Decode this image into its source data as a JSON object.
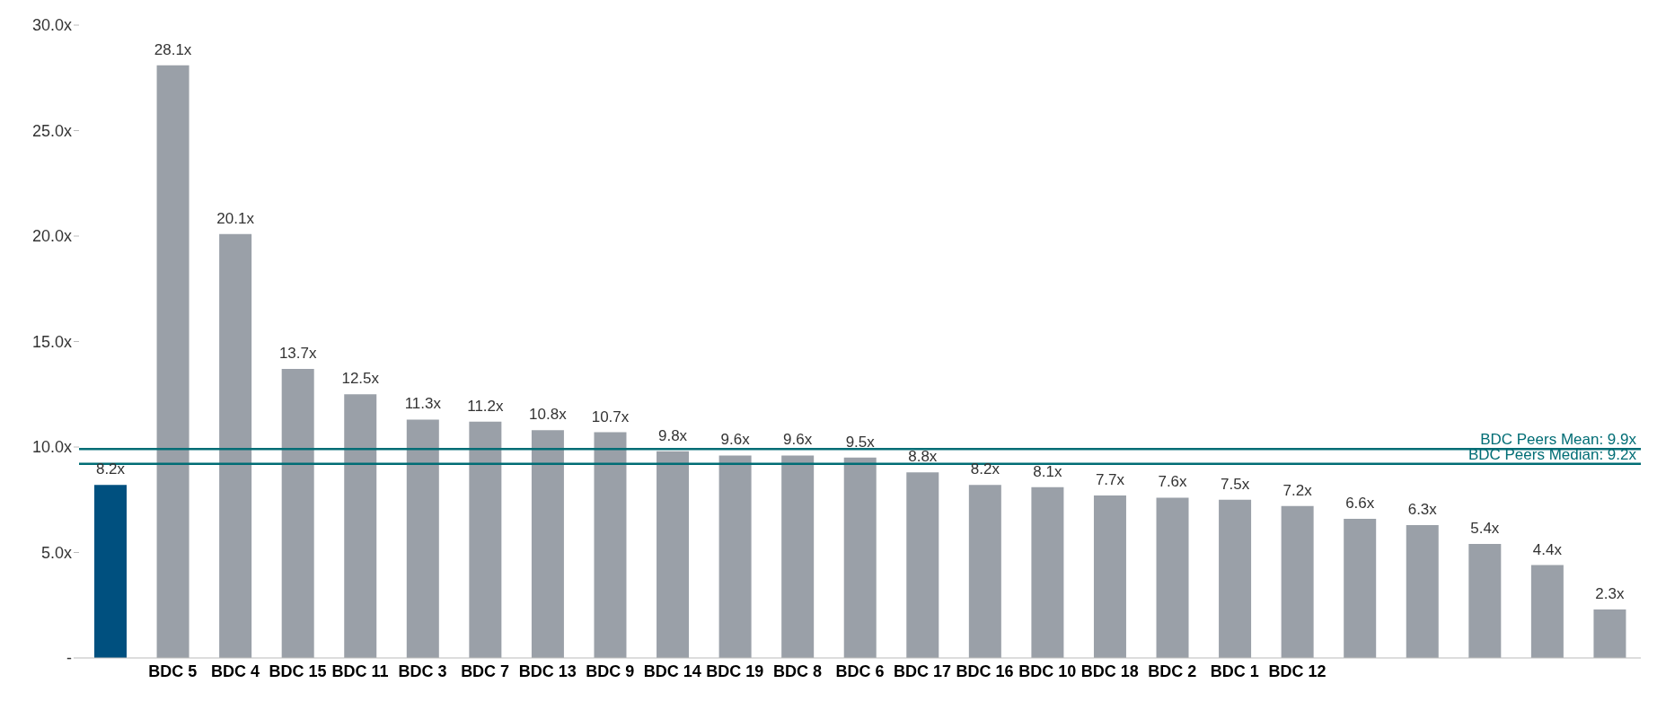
{
  "chart_data": {
    "type": "bar",
    "categories": [
      null,
      "BDC 5",
      "BDC 4",
      "BDC 15",
      "BDC 11",
      "BDC 3",
      "BDC 7",
      "BDC 13",
      "BDC 9",
      "BDC 14",
      "BDC 19",
      "BDC 8",
      "BDC 6",
      "BDC 17",
      "BDC 16",
      "BDC 10",
      "BDC 18",
      "BDC 2",
      "BDC 1",
      "BDC 12",
      null,
      null,
      null,
      null,
      null
    ],
    "values": [
      8.2,
      28.1,
      20.1,
      13.7,
      12.5,
      11.3,
      11.2,
      10.8,
      10.7,
      9.8,
      9.6,
      9.6,
      9.5,
      8.8,
      8.2,
      8.1,
      7.7,
      7.6,
      7.5,
      7.2,
      6.6,
      6.3,
      5.4,
      4.4,
      2.3
    ],
    "colors": [
      "#00507f",
      "#9aa0a8",
      "#9aa0a8",
      "#9aa0a8",
      "#9aa0a8",
      "#9aa0a8",
      "#9aa0a8",
      "#9aa0a8",
      "#9aa0a8",
      "#9aa0a8",
      "#9aa0a8",
      "#9aa0a8",
      "#9aa0a8",
      "#9aa0a8",
      "#9aa0a8",
      "#9aa0a8",
      "#9aa0a8",
      "#9aa0a8",
      "#9aa0a8",
      "#9aa0a8",
      "#9aa0a8",
      "#9aa0a8",
      "#9aa0a8",
      "#9aa0a8",
      "#9aa0a8"
    ],
    "value_labels": [
      "8.2x",
      "28.1x",
      "20.1x",
      "13.7x",
      "12.5x",
      "11.3x",
      "11.2x",
      "10.8x",
      "10.7x",
      "9.8x",
      "9.6x",
      "9.6x",
      "9.5x",
      "8.8x",
      "8.2x",
      "8.1x",
      "7.7x",
      "7.6x",
      "7.5x",
      "7.2x",
      "6.6x",
      "6.3x",
      "5.4x",
      "4.4x",
      "2.3x"
    ],
    "ylim": [
      0,
      30
    ],
    "yticks": [
      {
        "value": 0,
        "label": "-"
      },
      {
        "value": 5,
        "label": "5.0x"
      },
      {
        "value": 10,
        "label": "10.0x"
      },
      {
        "value": 15,
        "label": "15.0x"
      },
      {
        "value": 20,
        "label": "20.0x"
      },
      {
        "value": 25,
        "label": "25.0x"
      },
      {
        "value": 30,
        "label": "30.0x"
      }
    ],
    "ref_lines": [
      {
        "axis": "y",
        "value": 9.9,
        "label": "BDC Peers Mean: 9.9x",
        "color": "#006d75"
      },
      {
        "axis": "y",
        "value": 9.2,
        "label": "BDC Peers Median: 9.2x",
        "color": "#006d75"
      }
    ],
    "grid": false,
    "legend": false
  }
}
